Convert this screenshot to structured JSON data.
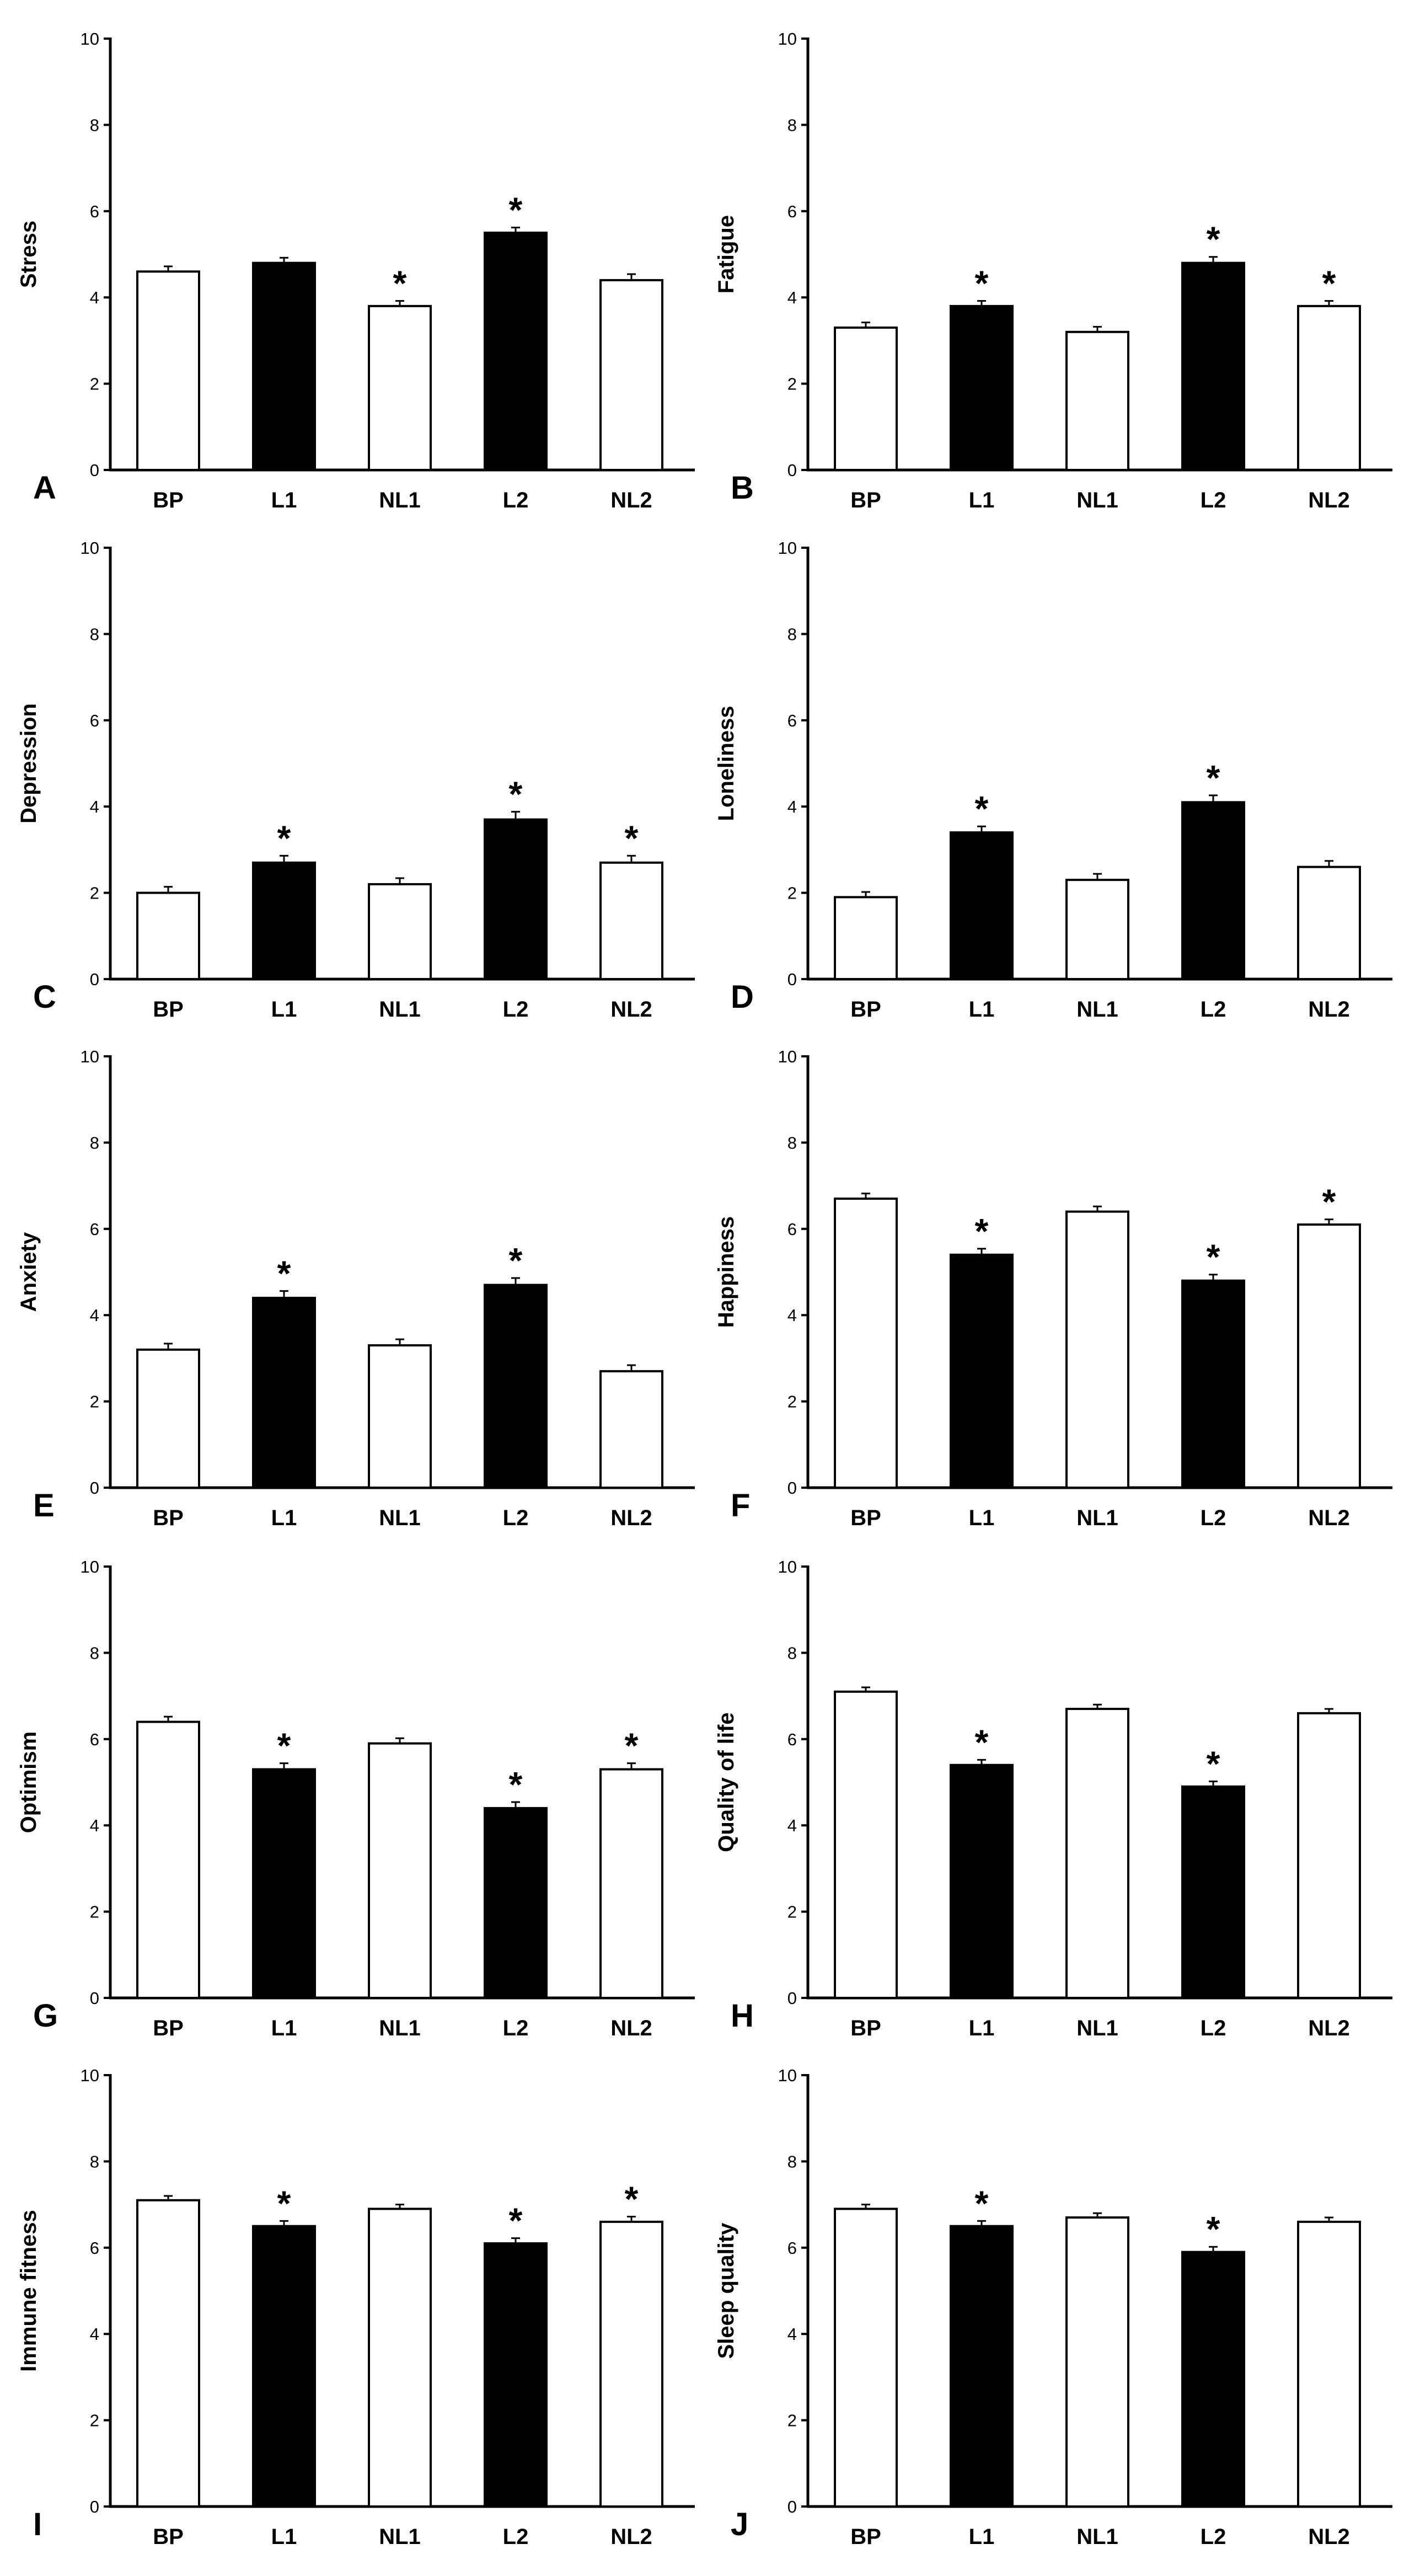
{
  "figure": {
    "bar_colors": {
      "baseline": "#ffffff",
      "lockdown": "#000000",
      "nonlockdown": "#ffffff",
      "stroke": "#000000"
    }
  },
  "chart_data": [
    {
      "panel": "A",
      "type": "bar",
      "ylabel": "Stress",
      "categories": [
        "BP",
        "L1",
        "NL1",
        "L2",
        "NL2"
      ],
      "values": [
        4.6,
        4.8,
        3.8,
        5.5,
        4.4
      ],
      "errors": [
        0.12,
        0.12,
        0.12,
        0.12,
        0.14
      ],
      "significant": [
        false,
        false,
        true,
        true,
        false
      ],
      "filled": [
        false,
        true,
        false,
        true,
        false
      ],
      "ylim": [
        0,
        10
      ],
      "yticks": [
        0,
        2,
        4,
        6,
        8,
        10
      ],
      "marker": "*"
    },
    {
      "panel": "B",
      "type": "bar",
      "ylabel": "Fatigue",
      "categories": [
        "BP",
        "L1",
        "NL1",
        "L2",
        "NL2"
      ],
      "values": [
        3.3,
        3.8,
        3.2,
        4.8,
        3.8
      ],
      "errors": [
        0.12,
        0.12,
        0.12,
        0.14,
        0.12
      ],
      "significant": [
        false,
        true,
        false,
        true,
        true
      ],
      "filled": [
        false,
        true,
        false,
        true,
        false
      ],
      "ylim": [
        0,
        10
      ],
      "yticks": [
        0,
        2,
        4,
        6,
        8,
        10
      ],
      "marker": "*"
    },
    {
      "panel": "C",
      "type": "bar",
      "ylabel": "Depression",
      "categories": [
        "BP",
        "L1",
        "NL1",
        "L2",
        "NL2"
      ],
      "values": [
        2.0,
        2.7,
        2.2,
        3.7,
        2.7
      ],
      "errors": [
        0.14,
        0.16,
        0.14,
        0.18,
        0.16
      ],
      "significant": [
        false,
        true,
        false,
        true,
        true
      ],
      "filled": [
        false,
        true,
        false,
        true,
        false
      ],
      "ylim": [
        0,
        10
      ],
      "yticks": [
        0,
        2,
        4,
        6,
        8,
        10
      ],
      "marker": "*"
    },
    {
      "panel": "D",
      "type": "bar",
      "ylabel": "Loneliness",
      "categories": [
        "BP",
        "L1",
        "NL1",
        "L2",
        "NL2"
      ],
      "values": [
        1.9,
        3.4,
        2.3,
        4.1,
        2.6
      ],
      "errors": [
        0.12,
        0.14,
        0.14,
        0.16,
        0.14
      ],
      "significant": [
        false,
        true,
        false,
        true,
        false
      ],
      "filled": [
        false,
        true,
        false,
        true,
        false
      ],
      "ylim": [
        0,
        10
      ],
      "yticks": [
        0,
        2,
        4,
        6,
        8,
        10
      ],
      "marker": "*"
    },
    {
      "panel": "E",
      "type": "bar",
      "ylabel": "Anxiety",
      "categories": [
        "BP",
        "L1",
        "NL1",
        "L2",
        "NL2"
      ],
      "values": [
        3.2,
        4.4,
        3.3,
        4.7,
        2.7
      ],
      "errors": [
        0.14,
        0.16,
        0.14,
        0.16,
        0.14
      ],
      "significant": [
        false,
        true,
        false,
        true,
        false
      ],
      "filled": [
        false,
        true,
        false,
        true,
        false
      ],
      "ylim": [
        0,
        10
      ],
      "yticks": [
        0,
        2,
        4,
        6,
        8,
        10
      ],
      "marker": "*"
    },
    {
      "panel": "F",
      "type": "bar",
      "ylabel": "Happiness",
      "categories": [
        "BP",
        "L1",
        "NL1",
        "L2",
        "NL2"
      ],
      "values": [
        6.7,
        5.4,
        6.4,
        4.8,
        6.1
      ],
      "errors": [
        0.12,
        0.14,
        0.12,
        0.14,
        0.12
      ],
      "significant": [
        false,
        true,
        false,
        true,
        true
      ],
      "filled": [
        false,
        true,
        false,
        true,
        false
      ],
      "ylim": [
        0,
        10
      ],
      "yticks": [
        0,
        2,
        4,
        6,
        8,
        10
      ],
      "marker": "*"
    },
    {
      "panel": "G",
      "type": "bar",
      "ylabel": "Optimism",
      "categories": [
        "BP",
        "L1",
        "NL1",
        "L2",
        "NL2"
      ],
      "values": [
        6.4,
        5.3,
        5.9,
        4.4,
        5.3
      ],
      "errors": [
        0.12,
        0.14,
        0.12,
        0.14,
        0.14
      ],
      "significant": [
        false,
        true,
        false,
        true,
        true
      ],
      "filled": [
        false,
        true,
        false,
        true,
        false
      ],
      "ylim": [
        0,
        10
      ],
      "yticks": [
        0,
        2,
        4,
        6,
        8,
        10
      ],
      "marker": "*"
    },
    {
      "panel": "H",
      "type": "bar",
      "ylabel": "Quality of life",
      "categories": [
        "BP",
        "L1",
        "NL1",
        "L2",
        "NL2"
      ],
      "values": [
        7.1,
        5.4,
        6.7,
        4.9,
        6.6
      ],
      "errors": [
        0.1,
        0.12,
        0.1,
        0.12,
        0.1
      ],
      "significant": [
        false,
        true,
        false,
        true,
        false
      ],
      "filled": [
        false,
        true,
        false,
        true,
        false
      ],
      "ylim": [
        0,
        10
      ],
      "yticks": [
        0,
        2,
        4,
        6,
        8,
        10
      ],
      "marker": "*"
    },
    {
      "panel": "I",
      "type": "bar",
      "ylabel": "Immune fitness",
      "categories": [
        "BP",
        "L1",
        "NL1",
        "L2",
        "NL2"
      ],
      "values": [
        7.1,
        6.5,
        6.9,
        6.1,
        6.6
      ],
      "errors": [
        0.1,
        0.12,
        0.1,
        0.12,
        0.12
      ],
      "significant": [
        false,
        true,
        false,
        true,
        true
      ],
      "filled": [
        false,
        true,
        false,
        true,
        false
      ],
      "ylim": [
        0,
        10
      ],
      "yticks": [
        0,
        2,
        4,
        6,
        8,
        10
      ],
      "marker": "*"
    },
    {
      "panel": "J",
      "type": "bar",
      "ylabel": "Sleep quality",
      "categories": [
        "BP",
        "L1",
        "NL1",
        "L2",
        "NL2"
      ],
      "values": [
        6.9,
        6.5,
        6.7,
        5.9,
        6.6
      ],
      "errors": [
        0.1,
        0.12,
        0.1,
        0.12,
        0.1
      ],
      "significant": [
        false,
        true,
        false,
        true,
        false
      ],
      "filled": [
        false,
        true,
        false,
        true,
        false
      ],
      "ylim": [
        0,
        10
      ],
      "yticks": [
        0,
        2,
        4,
        6,
        8,
        10
      ],
      "marker": "*"
    }
  ]
}
